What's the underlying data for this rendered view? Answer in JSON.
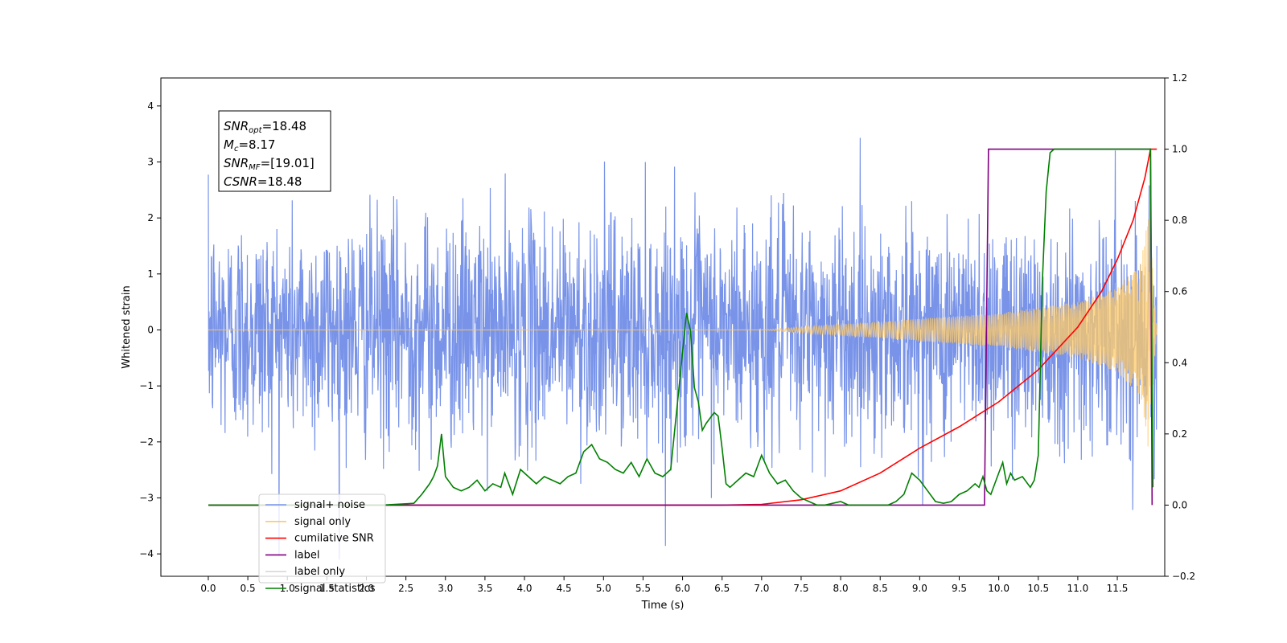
{
  "chart_data": {
    "type": "line",
    "xlabel": "Time (s)",
    "ylabel": "Whitened strain",
    "xlim": [
      -0.6,
      12.1
    ],
    "ylim": [
      -4.4,
      4.5
    ],
    "y2lim": [
      -0.2,
      1.2
    ],
    "xticks": [
      "0.0",
      "0.5",
      "1.0",
      "1.5",
      "2.0",
      "2.5",
      "3.0",
      "3.5",
      "4.0",
      "4.5",
      "5.0",
      "5.5",
      "6.0",
      "6.5",
      "7.0",
      "7.5",
      "8.0",
      "8.5",
      "9.0",
      "9.5",
      "10.0",
      "10.5",
      "11.0",
      "11.5"
    ],
    "yticks": [
      "−4",
      "−3",
      "−2",
      "−1",
      "0",
      "1",
      "2",
      "3",
      "4"
    ],
    "y2ticks": [
      "−0.2",
      "0.0",
      "0.2",
      "0.4",
      "0.6",
      "0.8",
      "1.0",
      "1.2"
    ],
    "info_box": [
      {
        "base": "SNR",
        "sub": "opt",
        "value": "=18.48"
      },
      {
        "base": "M",
        "sub": "c",
        "value": "=8.17"
      },
      {
        "base": "SNR",
        "sub": "MF",
        "value": "=[19.01]"
      },
      {
        "base": "CSNR",
        "sub": "",
        "value": "=18.48"
      }
    ],
    "legend": {
      "placement": "lower-left",
      "entries": [
        {
          "name": "signal+ noise",
          "color": "#7893e8"
        },
        {
          "name": "signal only",
          "color": "#ffc966"
        },
        {
          "name": "cumilative SNR",
          "color": "#ff0000"
        },
        {
          "name": "label",
          "color": "#800080"
        },
        {
          "name": "label only",
          "color": "#d8d8d8"
        },
        {
          "name": "signal statistics",
          "color": "#008000"
        }
      ]
    },
    "series": [
      {
        "name": "signal+ noise",
        "axis": "left",
        "color": "#7893e8",
        "t_start": 0.0,
        "t_end": 12.0,
        "noise_std": 1.0
      },
      {
        "name": "signal only",
        "axis": "left",
        "color": "#ffc966",
        "envelope_t": [
          0.0,
          7.0,
          7.5,
          8.0,
          8.5,
          9.0,
          9.5,
          10.0,
          10.5,
          11.0,
          11.5,
          11.8,
          11.9,
          12.0
        ],
        "envelope_a": [
          0.0,
          0.0,
          0.05,
          0.1,
          0.14,
          0.2,
          0.25,
          0.3,
          0.4,
          0.5,
          0.75,
          1.2,
          2.2,
          0.0
        ]
      },
      {
        "name": "cumilative SNR",
        "axis": "right",
        "color": "#ff0000",
        "x": [
          0.0,
          6.5,
          7.0,
          7.5,
          8.0,
          8.5,
          9.0,
          9.5,
          10.0,
          10.5,
          11.0,
          11.3,
          11.5,
          11.7,
          11.85,
          11.92,
          12.0
        ],
        "y": [
          0.0,
          0.0,
          0.002,
          0.015,
          0.04,
          0.09,
          0.16,
          0.22,
          0.29,
          0.38,
          0.5,
          0.6,
          0.69,
          0.8,
          0.92,
          1.0,
          1.0
        ]
      },
      {
        "name": "label",
        "axis": "right",
        "color": "#800080",
        "x": [
          0.0,
          9.82,
          9.87,
          11.92,
          11.94
        ],
        "y": [
          0.0,
          0.0,
          1.0,
          1.0,
          0.0
        ]
      },
      {
        "name": "signal statistics",
        "axis": "right",
        "color": "#008000",
        "x": [
          0.0,
          2.2,
          2.45,
          2.6,
          2.7,
          2.8,
          2.85,
          2.9,
          2.95,
          3.0,
          3.1,
          3.2,
          3.3,
          3.4,
          3.5,
          3.6,
          3.7,
          3.75,
          3.85,
          3.95,
          4.05,
          4.15,
          4.25,
          4.35,
          4.45,
          4.55,
          4.65,
          4.75,
          4.85,
          4.95,
          5.05,
          5.15,
          5.25,
          5.35,
          5.45,
          5.55,
          5.65,
          5.75,
          5.85,
          5.95,
          6.05,
          6.1,
          6.15,
          6.2,
          6.25,
          6.3,
          6.4,
          6.45,
          6.5,
          6.55,
          6.6,
          6.7,
          6.8,
          6.9,
          7.0,
          7.1,
          7.2,
          7.3,
          7.4,
          7.5,
          7.6,
          7.7,
          7.8,
          7.9,
          8.0,
          8.1,
          8.2,
          8.3,
          8.4,
          8.6,
          8.7,
          8.8,
          8.9,
          9.0,
          9.1,
          9.2,
          9.3,
          9.4,
          9.5,
          9.6,
          9.7,
          9.75,
          9.8,
          9.85,
          9.9,
          10.0,
          10.05,
          10.1,
          10.15,
          10.2,
          10.3,
          10.4,
          10.45,
          10.5,
          10.55,
          10.6,
          10.65,
          10.7,
          10.75,
          10.8,
          11.0,
          11.5,
          11.9,
          11.92,
          11.95
        ],
        "y": [
          0.0,
          0.0,
          0.003,
          0.005,
          0.03,
          0.06,
          0.08,
          0.11,
          0.2,
          0.08,
          0.05,
          0.04,
          0.05,
          0.07,
          0.04,
          0.06,
          0.05,
          0.09,
          0.03,
          0.1,
          0.08,
          0.06,
          0.08,
          0.07,
          0.06,
          0.08,
          0.09,
          0.15,
          0.17,
          0.13,
          0.12,
          0.1,
          0.09,
          0.12,
          0.08,
          0.13,
          0.09,
          0.08,
          0.1,
          0.32,
          0.54,
          0.49,
          0.33,
          0.29,
          0.21,
          0.23,
          0.26,
          0.25,
          0.16,
          0.06,
          0.05,
          0.07,
          0.09,
          0.08,
          0.14,
          0.09,
          0.06,
          0.07,
          0.04,
          0.02,
          0.01,
          0.0,
          0.0,
          0.005,
          0.01,
          0.0,
          0.0,
          0.0,
          0.0,
          0.0,
          0.01,
          0.03,
          0.09,
          0.07,
          0.04,
          0.01,
          0.005,
          0.01,
          0.03,
          0.04,
          0.06,
          0.05,
          0.08,
          0.04,
          0.03,
          0.09,
          0.12,
          0.06,
          0.09,
          0.07,
          0.08,
          0.05,
          0.07,
          0.14,
          0.62,
          0.88,
          0.99,
          1.0,
          1.0,
          1.0,
          1.0,
          1.0,
          1.0,
          1.0,
          0.05
        ]
      }
    ]
  }
}
